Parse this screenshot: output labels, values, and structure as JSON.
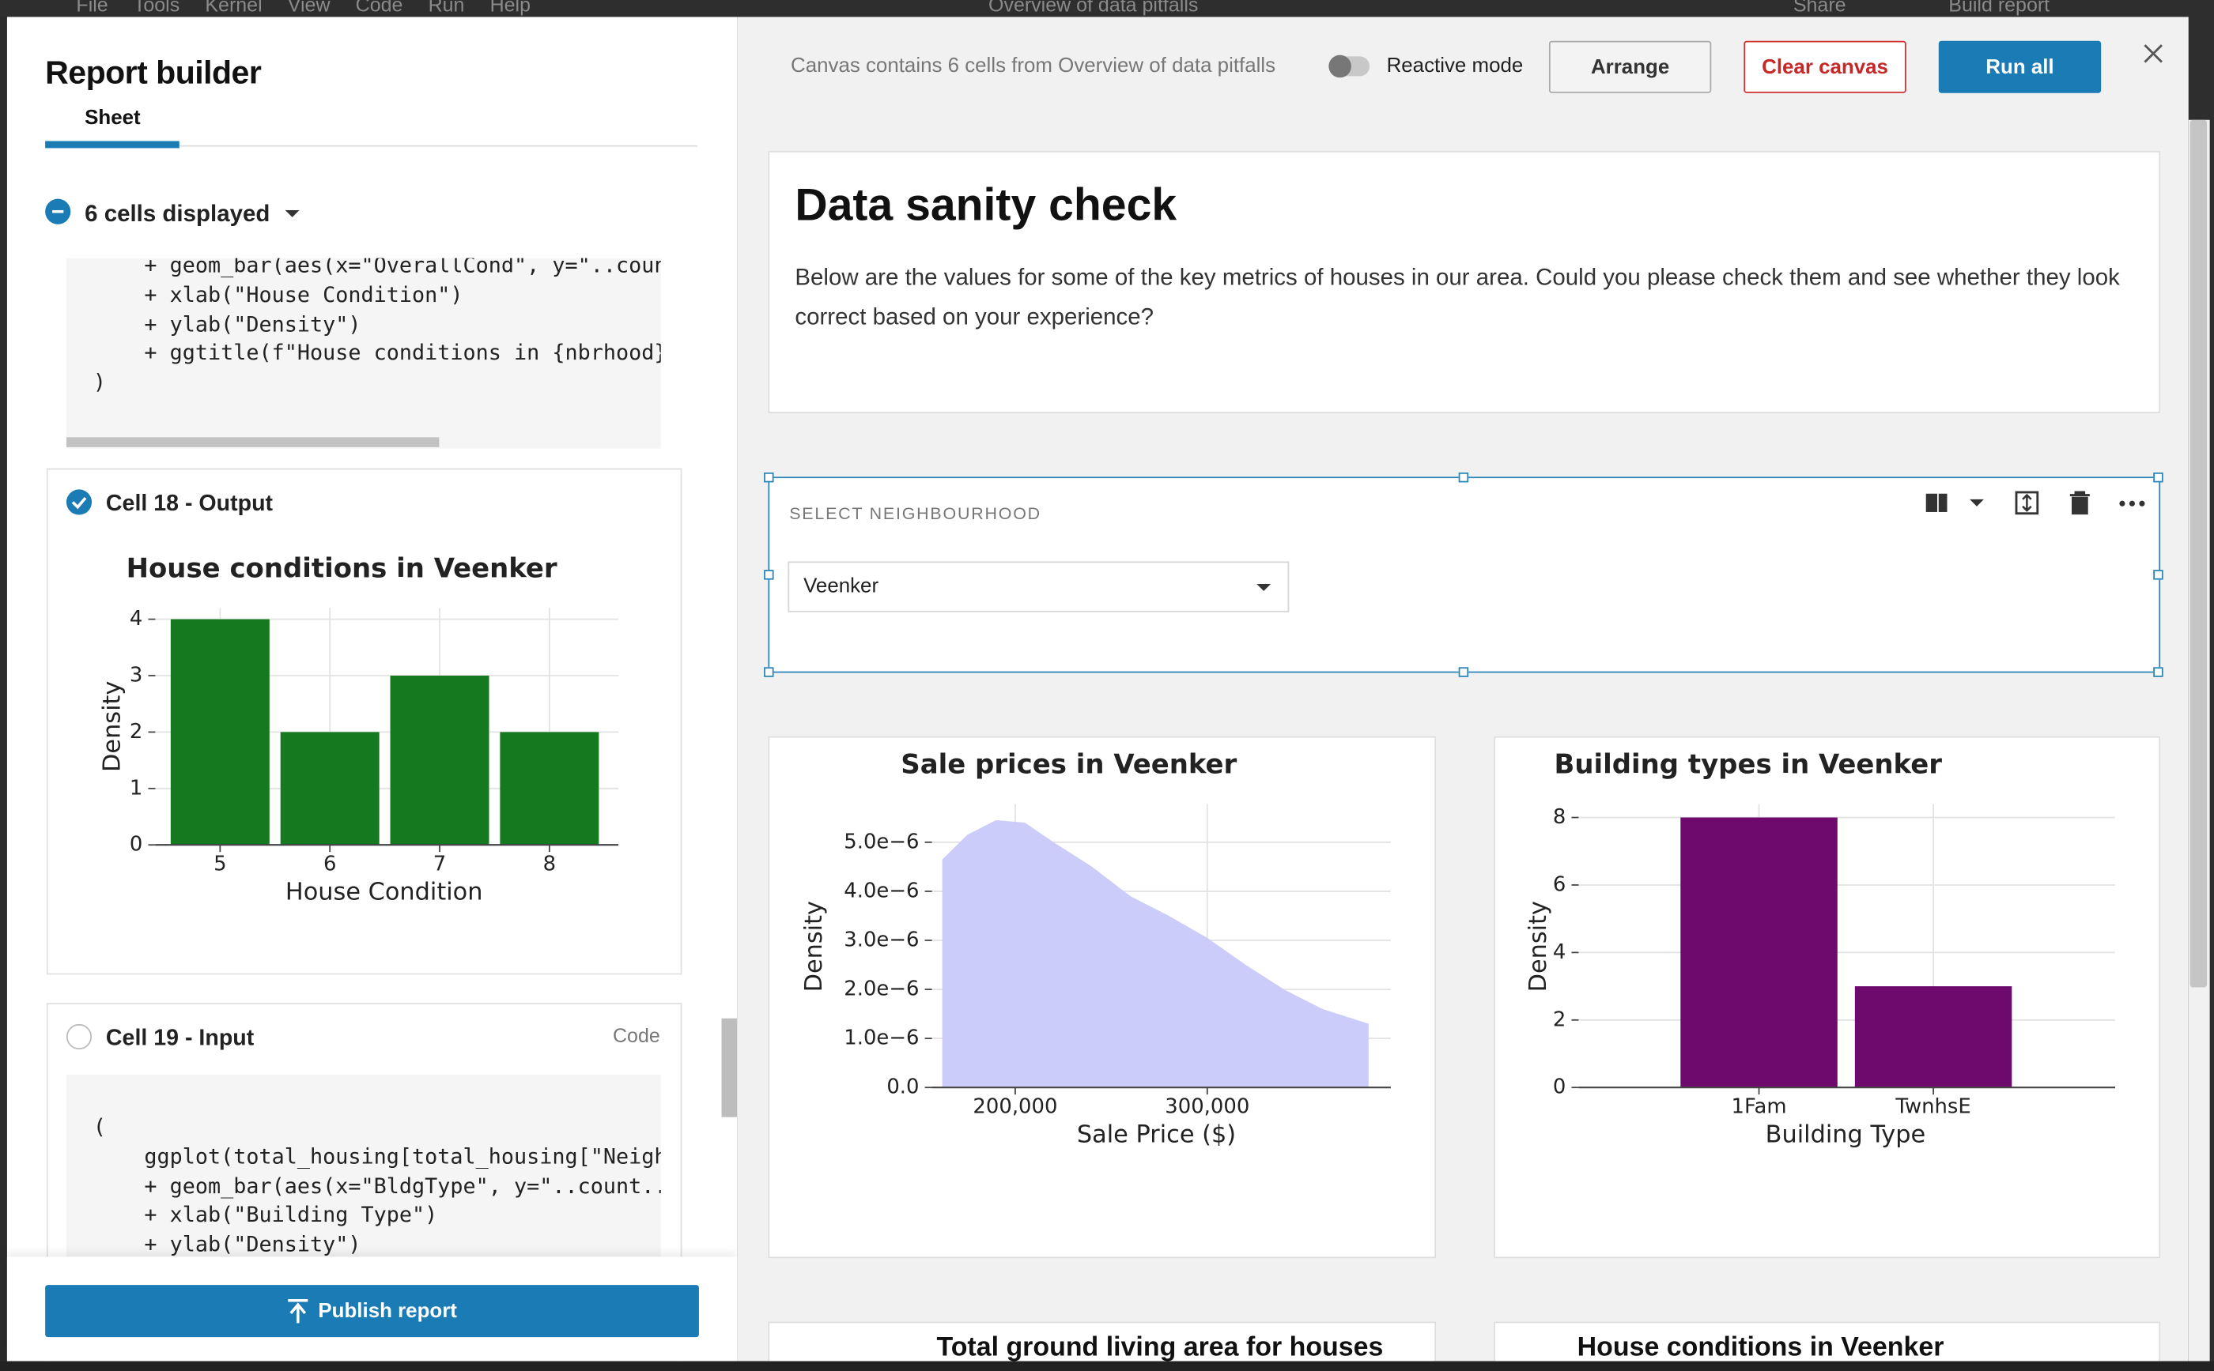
{
  "top_bar": {
    "menu": [
      "File",
      "Tools",
      "Kernel",
      "View",
      "Code",
      "Run",
      "Help"
    ],
    "document": "Overview of data pitfalls",
    "share": "Share",
    "build": "Build report"
  },
  "sidebar": {
    "title": "Report builder",
    "tab": "Sheet",
    "cells_displayed": "6 cells displayed",
    "cell17_code": [
      "    + geom_bar(aes(x=\"OverallCond\", y=\"..coun",
      "    + xlab(\"House Condition\")",
      "    + ylab(\"Density\")",
      "    + ggtitle(f\"House conditions in {nbrhood}",
      ")"
    ],
    "cell18": {
      "label": "Cell 18 - Output",
      "chart": {
        "type": "bar",
        "title": "House conditions in Veenker",
        "x_label": "House Condition",
        "y_label": "Density",
        "categories": [
          "5",
          "6",
          "7",
          "8"
        ],
        "values": [
          4,
          2,
          3,
          2
        ],
        "color": "#157a1f",
        "ylim": [
          0,
          4.2
        ],
        "yticks": [
          0,
          1,
          2,
          3,
          4
        ],
        "grid": true
      }
    },
    "cell19": {
      "label": "Cell 19 - Input",
      "kind": "Code",
      "code": [
        "(",
        "    ggplot(total_housing[total_housing[\"Neigh",
        "    + geom_bar(aes(x=\"BldgType\", y=\"..count..",
        "    + xlab(\"Building Type\")",
        "    + ylab(\"Density\")"
      ]
    },
    "publish": "Publish report"
  },
  "toolbar": {
    "canvas_info": "Canvas contains 6 cells from Overview of data pitfalls",
    "reactive": "Reactive mode",
    "arrange": "Arrange",
    "clear": "Clear canvas",
    "run": "Run all"
  },
  "canvas": {
    "heading": "Data sanity check",
    "text": "Below are the values for some of the key metrics of houses in our area. Could you please check them and see whether they look correct based on your experience?",
    "select_label": "SELECT NEIGHBOURHOOD",
    "select_value": "Veenker",
    "charts": [
      {
        "type": "area",
        "title": "Sale prices in Veenker",
        "x_label": "Sale Price ($)",
        "y_label": "Density",
        "color": "#ccccfa",
        "x": [
          162000,
          175000,
          190000,
          205000,
          220000,
          240000,
          260000,
          280000,
          300000,
          320000,
          340000,
          360000,
          384000
        ],
        "values": [
          4.65e-06,
          5.15e-06,
          5.45e-06,
          5.4e-06,
          5e-06,
          4.5e-06,
          3.9e-06,
          3.5e-06,
          3.05e-06,
          2.5e-06,
          2e-06,
          1.6e-06,
          1.3e-06
        ],
        "xlim": [
          156600,
          395600
        ],
        "xticks": [
          {
            "value": 200000,
            "label": "200,000"
          },
          {
            "value": 300000,
            "label": "300,000"
          }
        ],
        "ylim": [
          0,
          5.78e-06
        ],
        "yticks": [
          {
            "value": 0,
            "label": "0.0"
          },
          {
            "value": 1e-06,
            "label": "1.0e−6"
          },
          {
            "value": 2e-06,
            "label": "2.0e−6"
          },
          {
            "value": 3e-06,
            "label": "3.0e−6"
          },
          {
            "value": 4e-06,
            "label": "4.0e−6"
          },
          {
            "value": 5e-06,
            "label": "5.0e−6"
          }
        ],
        "grid": true
      },
      {
        "type": "bar",
        "title": "Building types in Veenker",
        "x_label": "Building Type",
        "y_label": "Density",
        "categories": [
          "1Fam",
          "TwnhsE"
        ],
        "values": [
          8,
          3
        ],
        "color": "#6e0a6e",
        "ylim": [
          0,
          8.4
        ],
        "yticks": [
          0,
          2,
          4,
          6,
          8
        ],
        "grid": true
      }
    ],
    "more_titles": [
      "Total ground living area for houses",
      "House conditions in Veenker"
    ]
  }
}
